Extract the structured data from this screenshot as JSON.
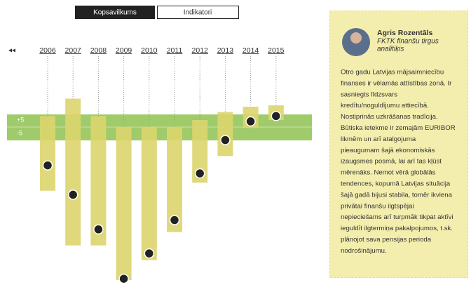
{
  "tabs": [
    "Kopsavilkums",
    "Indikatori"
  ],
  "nav_icon": "◂◂",
  "chart_data": {
    "type": "bar",
    "categories": [
      "2006",
      "2007",
      "2008",
      "2009",
      "2010",
      "2011",
      "2012",
      "2013",
      "2014",
      "2015"
    ],
    "range_low": [
      -48,
      -89,
      -89,
      -115,
      -100,
      -79,
      -42,
      -22,
      -1,
      5
    ],
    "range_high": [
      8,
      21,
      8,
      0,
      0,
      0,
      5,
      11,
      15,
      16
    ],
    "dot_values": [
      -29,
      -51,
      -77,
      -114,
      -95,
      -70,
      -35,
      -10,
      4,
      8
    ],
    "color": "#dcd56e",
    "dot_color": "#222222",
    "band_color": "#9fcb6b",
    "ylim": [
      -115,
      25
    ],
    "yticks": [
      {
        "value": 5,
        "label": "+5"
      },
      -5
    ]
  },
  "panel": {
    "name": "Agris Rozentāls",
    "role": [
      "FKTK finanšu tirgus",
      "analītiķis"
    ],
    "lines": [
      "Otro gadu Latvijas mājsaimniecību",
      "finanses ir vēlamās attīstības zonā. Ir",
      "sasniegts līdzsvars",
      "kredītu/noguldījumu attiecībā.",
      "Nostiprinās uzkrāšanas tradīcija.",
      "Būtiska ietekme ir zemajām EURIBOR",
      "likmēm un arī atalgojuma",
      "pieaugumam šajā ekonomiskās",
      "izaugsmes posmā, lai arī tas kļūst",
      "mērenāks. Nemot vērā globālās",
      "tendences, kopumā Latvijas situācija",
      "šajā gadā bijusi stabila, tomēr ikviena",
      "privātai finanšu ilgtspējai",
      "nepieciešams arī turpmāk tikpat aktīvi",
      "ieguldīt ilgtermiņa pakalpojumos, t.sk.",
      "plānojot sava pensijas perioda",
      "nodrošinājumu."
    ]
  }
}
